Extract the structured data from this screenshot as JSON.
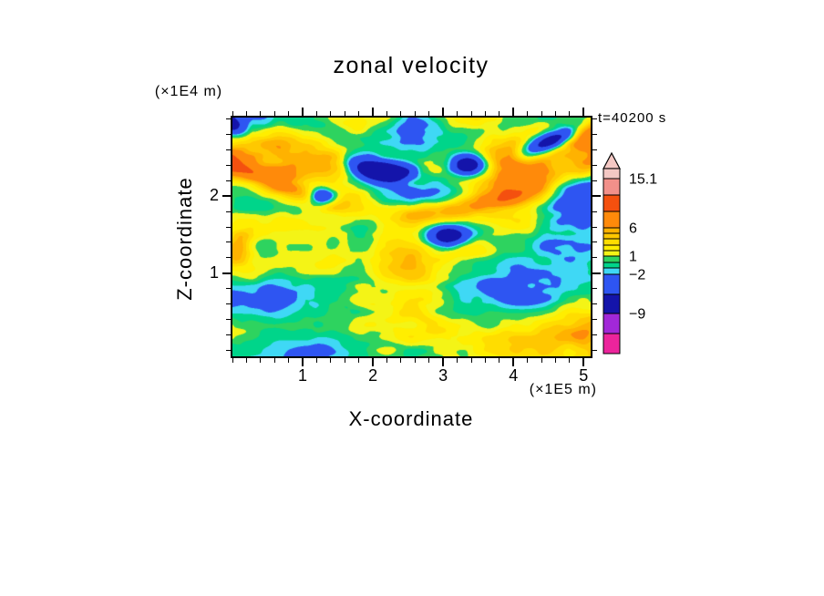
{
  "page": {
    "background": "#ffffff"
  },
  "chart_data": {
    "type": "heatmap",
    "title": "zonal velocity",
    "xlabel": "X-coordinate",
    "ylabel": "Z-coordinate",
    "x_unit": "(×1E5 m)",
    "y_unit": "(×1E4 m)",
    "time_label": "t=40200 s",
    "x_tick_values": [
      1,
      2,
      3,
      4,
      5
    ],
    "y_tick_values": [
      1,
      2
    ],
    "x_range": [
      0,
      5.1
    ],
    "y_range": [
      -0.08,
      3.02
    ],
    "minor_tick_step": 0.2,
    "levels": [
      -12,
      -9,
      -6,
      -2,
      -1,
      0,
      1,
      2,
      3,
      4,
      5,
      6,
      9,
      12,
      15.1
    ],
    "band_colors": [
      "#ec249c",
      "#a228d8",
      "#1414aa",
      "#2e55f2",
      "#3fd8f5",
      "#00d58a",
      "#2ed35f",
      "#f4f416",
      "#ffee00",
      "#ffdd00",
      "#ffc800",
      "#ffb200",
      "#ff8a0a",
      "#f4500f",
      "#f2908a",
      "#f4c8c4"
    ],
    "colorbar": {
      "band_heights_top_to_bottom": [
        11,
        18,
        18,
        18,
        6,
        6,
        7,
        6,
        6,
        7,
        6,
        7,
        22,
        21,
        22,
        22
      ],
      "labels": [
        {
          "text": "15.1",
          "boundary": 1
        },
        {
          "text": "6",
          "boundary": 4
        },
        {
          "text": "1",
          "boundary": 9
        },
        {
          "text": "−2",
          "boundary": 12
        },
        {
          "text": "−9",
          "boundary": 14
        }
      ],
      "arrow_tip": true
    },
    "field_model": {
      "octaves": 4,
      "noise_freq": [
        3.4,
        4.6
      ],
      "noise_offset": [
        7.3,
        2.9
      ],
      "noise_amp": 8.8,
      "bias": 0.8,
      "streaks": {
        "amp": 1.6,
        "freq": 2.7,
        "warp": 0.3
      },
      "ridge": {
        "amp": 8.0,
        "v0": 0.8,
        "dip": 0.2,
        "width": 0.055,
        "mod_freq": 1.7,
        "mod_phase": 0.2
      },
      "blob_band": {
        "amp": -13,
        "offset": 0.17,
        "width": 0.045,
        "freq": 2.1,
        "phase": 0.38
      },
      "blobs": [
        {
          "x": 0.66,
          "y": 0.8,
          "rx": 0.05,
          "ry": 0.045,
          "amp": -13
        },
        {
          "x": 0.25,
          "y": 0.67,
          "rx": 0.035,
          "ry": 0.035,
          "amp": -9
        },
        {
          "x": 0.6,
          "y": 0.5,
          "rx": 0.055,
          "ry": 0.045,
          "amp": -11
        },
        {
          "x": 0.95,
          "y": 0.55,
          "rx": 0.09,
          "ry": 0.28,
          "amp": -4
        },
        {
          "x": 0.985,
          "y": 0.95,
          "rx": 0.07,
          "ry": 0.06,
          "amp": 6
        },
        {
          "x": 0.02,
          "y": 0.46,
          "rx": 0.04,
          "ry": 0.08,
          "amp": 5
        }
      ]
    }
  }
}
